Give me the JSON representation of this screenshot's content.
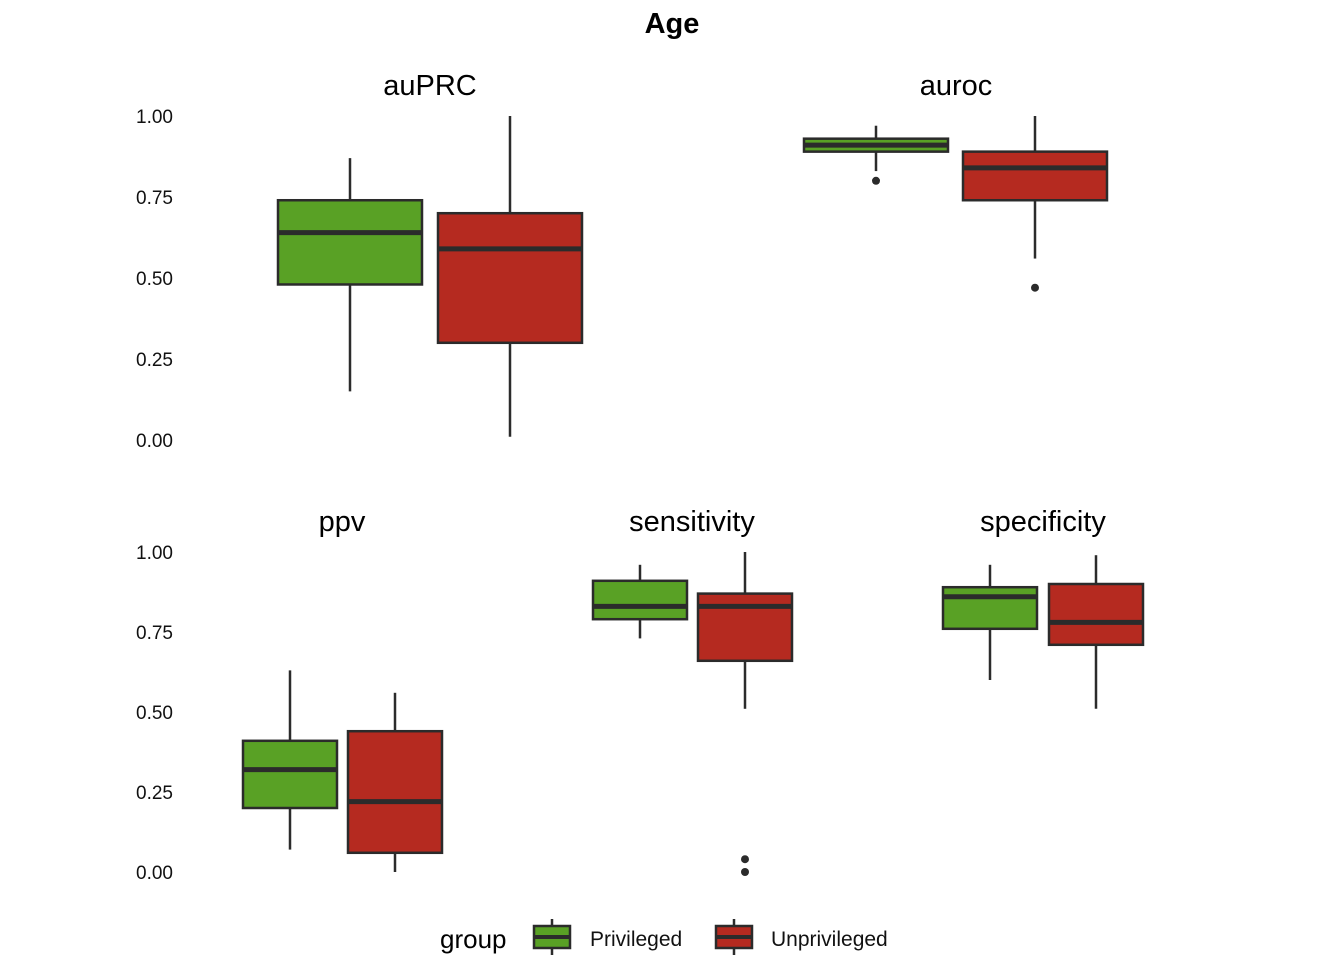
{
  "chart_data": {
    "type": "boxplot",
    "title": "Age",
    "legend": {
      "title": "group",
      "placement": "bottom",
      "entries": [
        {
          "name": "Privileged",
          "color": "#59A125"
        },
        {
          "name": "Unprivileged",
          "color": "#B52A20"
        }
      ]
    },
    "ylim": [
      0,
      1
    ],
    "yticks": [
      "0.00",
      "0.25",
      "0.50",
      "0.75",
      "1.00"
    ],
    "grid": false,
    "panels": [
      {
        "title": "auPRC",
        "boxes": [
          {
            "group": "Privileged",
            "whisker_low": 0.15,
            "q1": 0.48,
            "median": 0.64,
            "q3": 0.74,
            "whisker_high": 0.87,
            "outliers": []
          },
          {
            "group": "Unprivileged",
            "whisker_low": 0.01,
            "q1": 0.3,
            "median": 0.59,
            "q3": 0.7,
            "whisker_high": 1.0,
            "outliers": []
          }
        ]
      },
      {
        "title": "auroc",
        "boxes": [
          {
            "group": "Privileged",
            "whisker_low": 0.83,
            "q1": 0.89,
            "median": 0.91,
            "q3": 0.93,
            "whisker_high": 0.97,
            "outliers": [
              0.8
            ]
          },
          {
            "group": "Unprivileged",
            "whisker_low": 0.56,
            "q1": 0.74,
            "median": 0.84,
            "q3": 0.89,
            "whisker_high": 1.0,
            "outliers": [
              0.47
            ]
          }
        ]
      },
      {
        "title": "ppv",
        "boxes": [
          {
            "group": "Privileged",
            "whisker_low": 0.07,
            "q1": 0.2,
            "median": 0.32,
            "q3": 0.41,
            "whisker_high": 0.63,
            "outliers": []
          },
          {
            "group": "Unprivileged",
            "whisker_low": 0.0,
            "q1": 0.06,
            "median": 0.22,
            "q3": 0.44,
            "whisker_high": 0.56,
            "outliers": []
          }
        ]
      },
      {
        "title": "sensitivity",
        "boxes": [
          {
            "group": "Privileged",
            "whisker_low": 0.73,
            "q1": 0.79,
            "median": 0.83,
            "q3": 0.91,
            "whisker_high": 0.96,
            "outliers": []
          },
          {
            "group": "Unprivileged",
            "whisker_low": 0.51,
            "q1": 0.66,
            "median": 0.83,
            "q3": 0.87,
            "whisker_high": 1.0,
            "outliers": [
              0.04,
              0.0
            ]
          }
        ]
      },
      {
        "title": "specificity",
        "boxes": [
          {
            "group": "Privileged",
            "whisker_low": 0.6,
            "q1": 0.76,
            "median": 0.86,
            "q3": 0.89,
            "whisker_high": 0.96,
            "outliers": []
          },
          {
            "group": "Unprivileged",
            "whisker_low": 0.51,
            "q1": 0.71,
            "median": 0.78,
            "q3": 0.9,
            "whisker_high": 0.99,
            "outliers": []
          }
        ]
      }
    ]
  }
}
